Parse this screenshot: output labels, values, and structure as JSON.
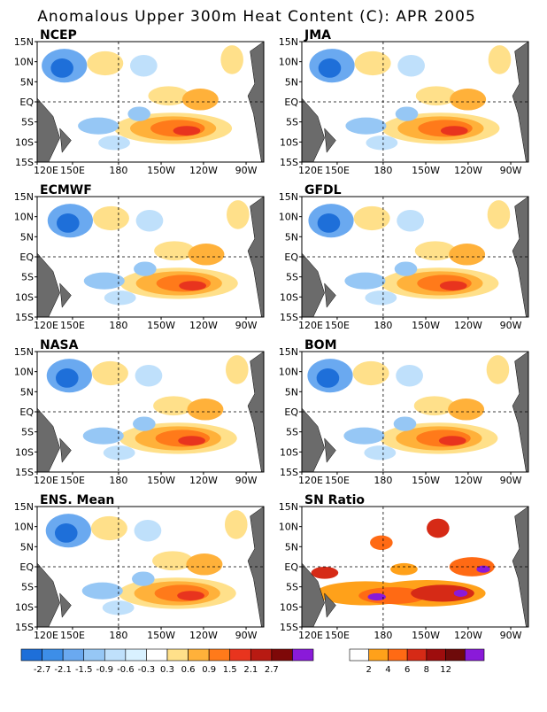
{
  "title": "Anomalous Upper 300m Heat Content (C): APR 2005",
  "lat_labels": [
    "15N",
    "10N",
    "5N",
    "EQ",
    "5S",
    "10S",
    "15S"
  ],
  "lon_labels": [
    "120E",
    "150E",
    "180",
    "150W",
    "120W",
    "90W"
  ],
  "panels": [
    {
      "name": "NCEP"
    },
    {
      "name": "JMA"
    },
    {
      "name": "ECMWF"
    },
    {
      "name": "GFDL"
    },
    {
      "name": "NASA"
    },
    {
      "name": "BOM"
    },
    {
      "name": "ENS. Mean"
    },
    {
      "name": "SN Ratio"
    }
  ],
  "anomaly_colorbar": {
    "labels": [
      "-2.7",
      "-2.1",
      "-1.5",
      "-0.9",
      "-0.6",
      "-0.3",
      "0.3",
      "0.6",
      "0.9",
      "1.5",
      "2.1",
      "2.7"
    ],
    "colors": [
      "#1e6fd9",
      "#3d8ee8",
      "#6aa9f0",
      "#96c7f5",
      "#bfe0fb",
      "#d9f1ff",
      "#ffffff",
      "#ffe08a",
      "#ffb13a",
      "#ff7a1a",
      "#e8341e",
      "#b81a12",
      "#7e0808",
      "#8a1ad9"
    ]
  },
  "snr_colorbar": {
    "labels": [
      "2",
      "4",
      "6",
      "8",
      "12"
    ],
    "colors": [
      "#ffffff",
      "#ffa11a",
      "#ff6a14",
      "#d62a16",
      "#9e0d0d",
      "#6e0a0a",
      "#8a1ad9"
    ]
  }
}
